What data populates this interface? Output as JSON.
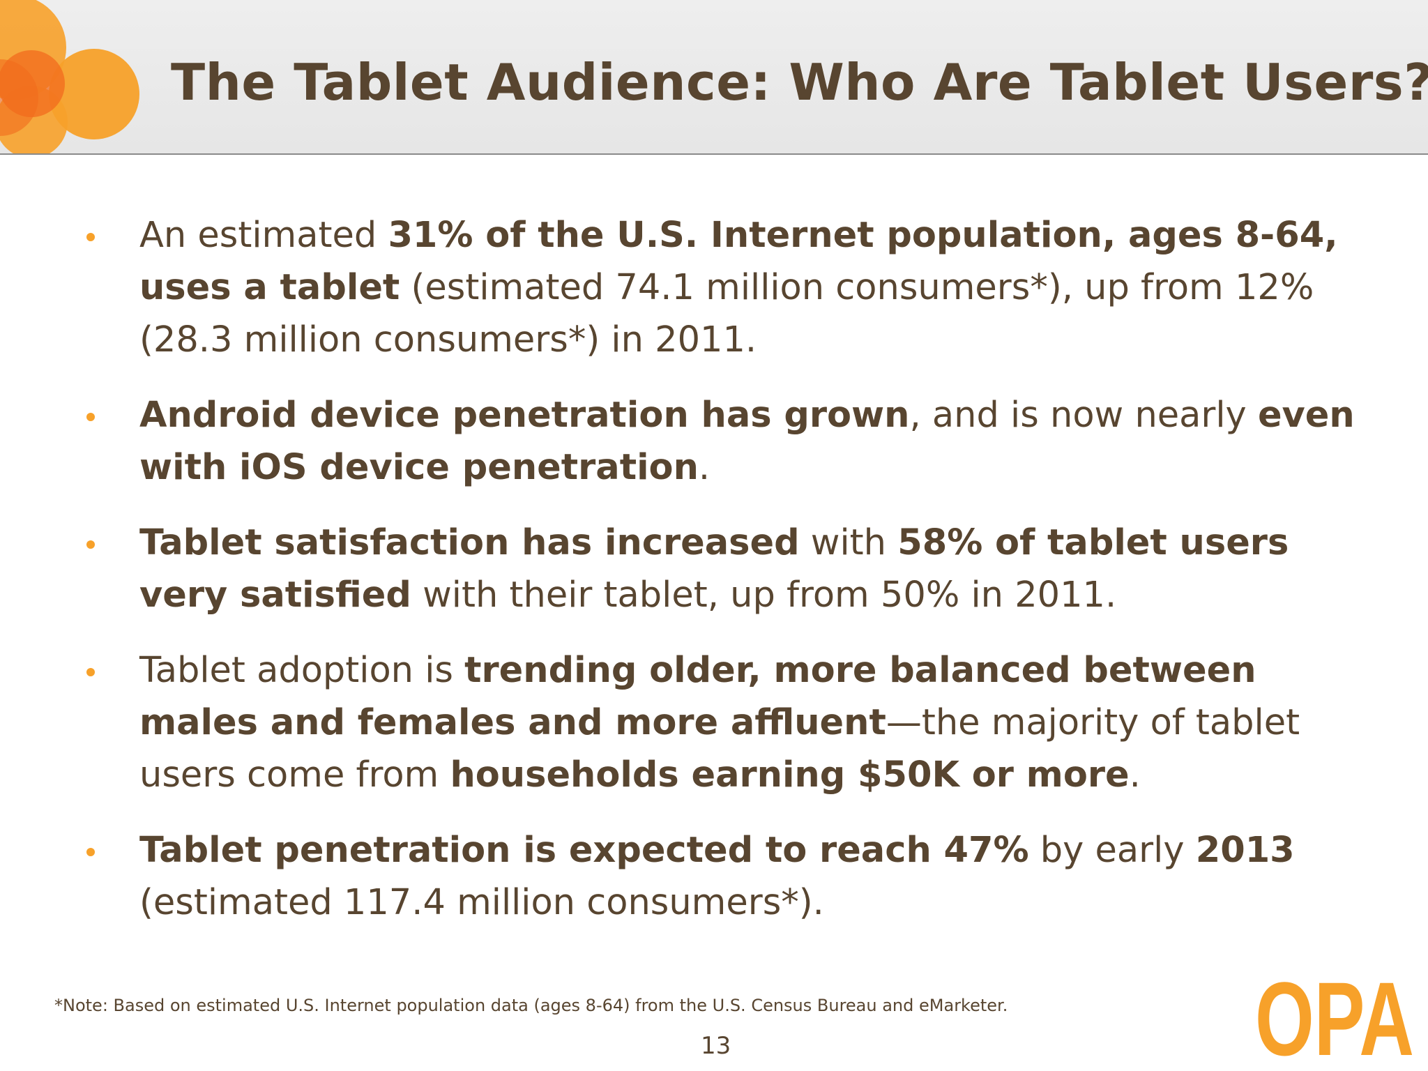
{
  "slide": {
    "title": "The Tablet Audience: Who Are Tablet Users?",
    "bullets": [
      [
        {
          "text": "An estimated ",
          "bold": false
        },
        {
          "text": "31% of the U.S. Internet population, ages 8-64, uses a tablet",
          "bold": true
        },
        {
          "text": " (estimated 74.1 million consumers*), up from 12% (28.3 million consumers*) in 2011.",
          "bold": false
        }
      ],
      [
        {
          "text": "Android device penetration has grown",
          "bold": true
        },
        {
          "text": ", and is now nearly ",
          "bold": false
        },
        {
          "text": "even with iOS device penetration",
          "bold": true
        },
        {
          "text": ".",
          "bold": false
        }
      ],
      [
        {
          "text": "Tablet satisfaction has increased",
          "bold": true
        },
        {
          "text": " with ",
          "bold": false
        },
        {
          "text": "58% of tablet users very satisfied",
          "bold": true
        },
        {
          "text": " with their tablet, up from 50% in 2011.",
          "bold": false
        }
      ],
      [
        {
          "text": "Tablet adoption is ",
          "bold": false
        },
        {
          "text": "trending older, more balanced between males and females and more affluent",
          "bold": true
        },
        {
          "text": "—the majority of tablet users come from ",
          "bold": false
        },
        {
          "text": "households earning $50K or more",
          "bold": true
        },
        {
          "text": ".",
          "bold": false
        }
      ],
      [
        {
          "text": "Tablet penetration is expected to reach 47%",
          "bold": true
        },
        {
          "text": " by early ",
          "bold": false
        },
        {
          "text": "2013",
          "bold": true
        },
        {
          "text": " (estimated 117.4 million consumers*).",
          "bold": false
        }
      ]
    ],
    "footnote": "*Note:  Based on estimated U.S. Internet population data (ages 8-64) from the U.S. Census Bureau and eMarketer.",
    "page_number": "13",
    "logo_text": "OPA"
  },
  "colors": {
    "text": "#584530",
    "accent_orange": "#f7a12a",
    "deep_orange": "#f26b1d",
    "header_bg": "#eeeeee"
  },
  "icons": [
    "orange-circles-decoration",
    "opa-logo"
  ]
}
